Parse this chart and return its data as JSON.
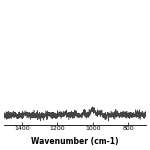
{
  "x_min": 1500,
  "x_max": 700,
  "y_min": 0,
  "y_max": 100,
  "xlabel": "Wavenumber (cm-1)",
  "xlabel_fontsize": 5.5,
  "tick_fontsize": 4.5,
  "xticks": [
    1400,
    1200,
    1000,
    800
  ],
  "line_color": "#444444",
  "background_color": "#ffffff",
  "noise_seed": 7,
  "signal_baseline": 8,
  "noise_amp": 1.5,
  "linewidth": 0.4
}
